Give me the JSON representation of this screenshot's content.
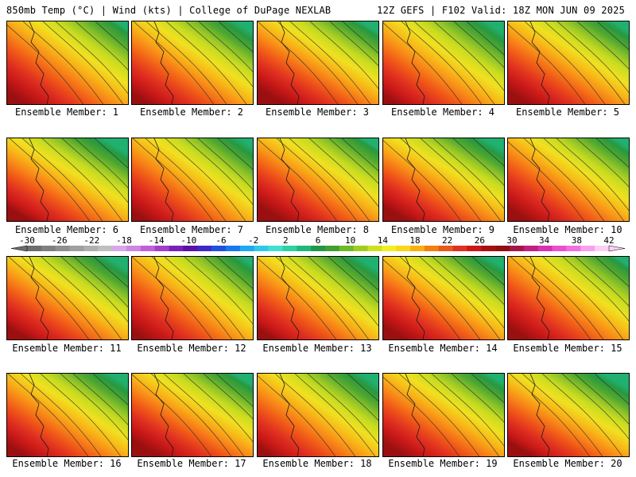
{
  "header": {
    "left_title": "850mb Temp (°C) | Wind (kts) | College of DuPage NEXLAB",
    "right_title": "12Z GEFS | F102 Valid: 18Z MON JUN 09 2025"
  },
  "members": [
    "Ensemble Member: 1",
    "Ensemble Member: 2",
    "Ensemble Member: 3",
    "Ensemble Member: 4",
    "Ensemble Member: 5",
    "Ensemble Member: 6",
    "Ensemble Member: 7",
    "Ensemble Member: 8",
    "Ensemble Member: 9",
    "Ensemble Member: 10",
    "Ensemble Member: 11",
    "Ensemble Member: 12",
    "Ensemble Member: 13",
    "Ensemble Member: 14",
    "Ensemble Member: 15",
    "Ensemble Member: 16",
    "Ensemble Member: 17",
    "Ensemble Member: 18",
    "Ensemble Member: 19",
    "Ensemble Member: 20"
  ],
  "colorbar": {
    "labels": [
      "-30",
      "-26",
      "-22",
      "-18",
      "-14",
      "-10",
      "-6",
      "-2",
      "2",
      "6",
      "10",
      "14",
      "18",
      "22",
      "26",
      "30",
      "34",
      "38",
      "42"
    ],
    "colors": [
      "#6e6e6e",
      "#7f7f7f",
      "#8f8f8f",
      "#9f9f9f",
      "#afafaf",
      "#bfbfbf",
      "#d7a8e6",
      "#cc88e0",
      "#c060d8",
      "#a040c8",
      "#7a20b8",
      "#5a10a8",
      "#3c28c8",
      "#2050e0",
      "#1878f0",
      "#20a8f0",
      "#30c8e8",
      "#40e0d0",
      "#30d0a0",
      "#20b878",
      "#209848",
      "#40a030",
      "#70b828",
      "#a0cc20",
      "#d0e020",
      "#f0f020",
      "#f8d818",
      "#f8b010",
      "#f08010",
      "#e85818",
      "#e03020",
      "#c81818",
      "#a81010",
      "#901010",
      "#a01848",
      "#c02080",
      "#d830b0",
      "#e850d0",
      "#f070e0",
      "#f8a0ec",
      "#fcd0f4"
    ]
  }
}
